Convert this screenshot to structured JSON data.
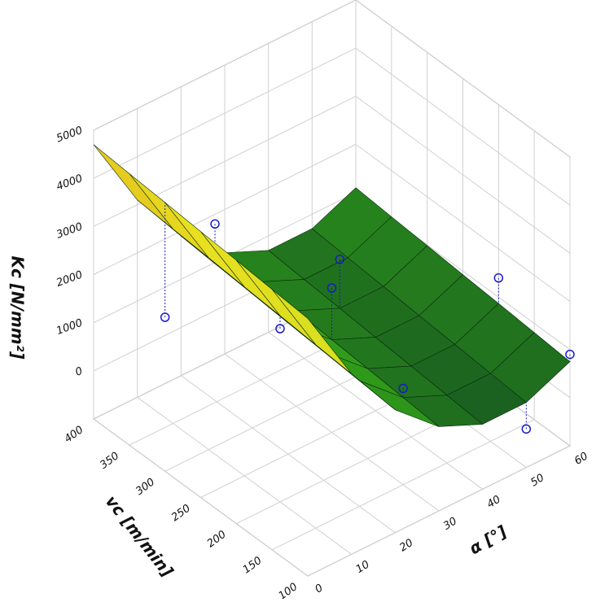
{
  "chart_data": {
    "type": "surface",
    "x_label": "α [°]",
    "y_label": "vc [m/min]",
    "z_label": "Kc [N/mm²]",
    "x": [
      0,
      10,
      20,
      30,
      40,
      50,
      60
    ],
    "y": [
      100,
      150,
      200,
      250,
      300,
      350,
      400
    ],
    "z": [
      [
        4350,
        2750,
        1550,
        750,
        350,
        350,
        750
      ],
      [
        4410,
        2810,
        1610,
        810,
        410,
        410,
        810
      ],
      [
        4470,
        2870,
        1670,
        870,
        470,
        470,
        870
      ],
      [
        4525,
        2925,
        1725,
        925,
        525,
        525,
        925
      ],
      [
        4585,
        2985,
        1785,
        985,
        585,
        585,
        985
      ],
      [
        4640,
        3040,
        1840,
        1040,
        640,
        640,
        1040
      ],
      [
        4700,
        3100,
        1900,
        1100,
        700,
        700,
        1100
      ]
    ],
    "xlim": [
      0,
      60
    ],
    "ylim": [
      100,
      400
    ],
    "zlim": [
      -1000,
      5000
    ],
    "xticks": [
      0,
      10,
      20,
      30,
      40,
      50,
      60
    ],
    "yticks": [
      100,
      150,
      200,
      250,
      300,
      350,
      400
    ],
    "zticks": [
      0,
      1000,
      2000,
      3000,
      4000,
      5000
    ],
    "grid": true,
    "colors": [
      "#124a22",
      "#2f9a1a",
      "#7ed61a",
      "#e8e020",
      "#c81010"
    ],
    "points": {
      "color": "#1a1acc",
      "x": [
        0,
        0,
        10,
        30,
        30,
        40,
        50,
        60,
        60
      ],
      "y": [
        300,
        230,
        200,
        150,
        250,
        300,
        100,
        200,
        100
      ],
      "z": [
        2200,
        4900,
        2600,
        1000,
        2000,
        1600,
        -200,
        1400,
        900
      ]
    }
  }
}
